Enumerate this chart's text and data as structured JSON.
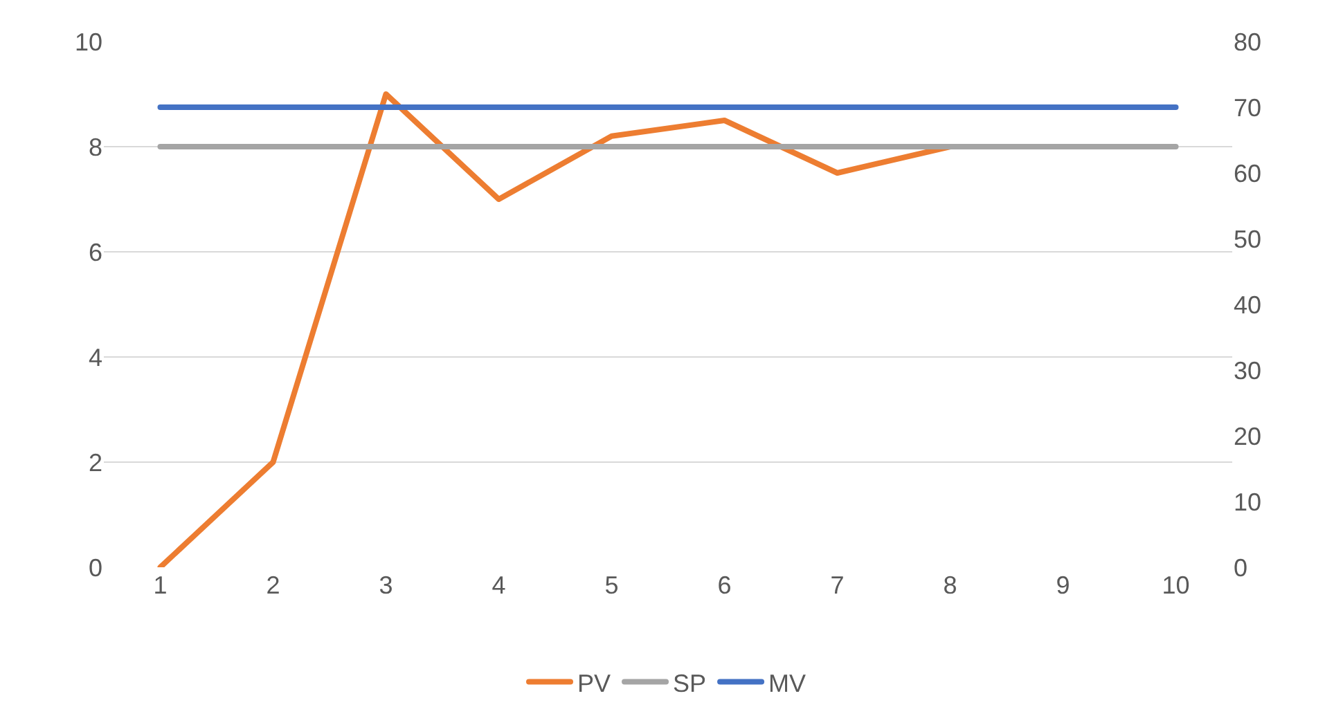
{
  "chart_data": {
    "type": "line",
    "categories": [
      "1",
      "2",
      "3",
      "4",
      "5",
      "6",
      "7",
      "8",
      "9",
      "10"
    ],
    "series": [
      {
        "name": "PV",
        "color": "#ed7d31",
        "values": [
          0,
          2,
          9,
          7,
          8.2,
          8.5,
          7.5,
          8,
          null,
          null
        ]
      },
      {
        "name": "SP",
        "color": "#a5a5a5",
        "values": [
          8,
          8,
          8,
          8,
          8,
          8,
          8,
          8,
          8,
          8
        ]
      },
      {
        "name": "MV",
        "color": "#4472c4",
        "axis": "y2",
        "values": [
          70,
          70,
          70,
          70,
          70,
          70,
          70,
          70,
          70,
          70
        ]
      }
    ],
    "ylim": [
      0,
      10
    ],
    "yticks": [
      0,
      2,
      4,
      6,
      8,
      10
    ],
    "y2lim": [
      0,
      80
    ],
    "y2ticks": [
      0,
      10,
      20,
      30,
      40,
      50,
      60,
      70,
      80
    ],
    "grid": "y",
    "legend": "bottom",
    "marker": "none",
    "line_style": "solid"
  }
}
